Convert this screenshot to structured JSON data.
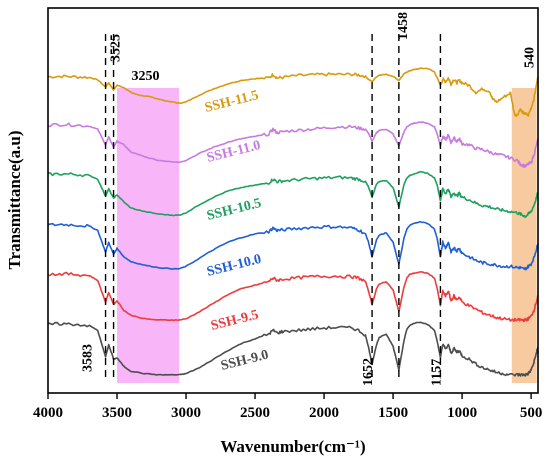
{
  "chart_data": {
    "type": "line",
    "xlabel": "Wavenumber(cm⁻¹)",
    "ylabel": "Transmittance(a.u)",
    "xlim": [
      4000,
      450
    ],
    "x_reversed": true,
    "x_ticks": [
      4000,
      3500,
      3000,
      2500,
      2000,
      1500,
      1000,
      500
    ],
    "y_ticks_shown": false,
    "grid": false,
    "legend": "inline labels beside each curve",
    "series": [
      {
        "name": "SSH-11.5",
        "color": "#d99a10",
        "offset": 5,
        "x": [
          4000,
          3900,
          3800,
          3700,
          3640,
          3583,
          3560,
          3525,
          3500,
          3450,
          3400,
          3350,
          3300,
          3250,
          3200,
          3150,
          3100,
          3050,
          3000,
          2900,
          2800,
          2700,
          2600,
          2500,
          2400,
          2370,
          2340,
          2300,
          2200,
          2100,
          2000,
          1900,
          1800,
          1750,
          1700,
          1680,
          1652,
          1620,
          1600,
          1550,
          1500,
          1458,
          1420,
          1400,
          1380,
          1350,
          1300,
          1250,
          1200,
          1180,
          1157,
          1140,
          1120,
          1100,
          1080,
          1060,
          1040,
          1020,
          1000,
          950,
          900,
          850,
          800,
          780,
          750,
          700,
          650,
          620,
          600,
          580,
          560,
          540,
          520,
          500,
          480,
          460,
          450
        ],
        "y": [
          0.92,
          0.93,
          0.92,
          0.91,
          0.87,
          0.75,
          0.82,
          0.7,
          0.78,
          0.74,
          0.66,
          0.62,
          0.6,
          0.58,
          0.55,
          0.52,
          0.5,
          0.48,
          0.5,
          0.62,
          0.72,
          0.8,
          0.86,
          0.89,
          0.9,
          0.96,
          0.9,
          0.91,
          0.94,
          0.95,
          0.96,
          0.96,
          0.96,
          0.95,
          0.93,
          0.88,
          0.84,
          0.92,
          0.95,
          0.96,
          0.93,
          0.86,
          0.97,
          1.0,
          1.02,
          1.04,
          1.06,
          1.06,
          1.0,
          0.9,
          0.78,
          0.88,
          0.84,
          0.9,
          0.8,
          0.88,
          0.82,
          0.86,
          0.82,
          0.78,
          0.66,
          0.72,
          0.68,
          0.55,
          0.5,
          0.58,
          0.65,
          0.3,
          0.28,
          0.38,
          0.32,
          0.3,
          0.28,
          0.4,
          0.55,
          0.8,
          0.92
        ]
      },
      {
        "name": "SSH-11.0",
        "color": "#c77ae0",
        "offset": 4,
        "x": [
          4000,
          3900,
          3800,
          3700,
          3640,
          3583,
          3560,
          3525,
          3500,
          3450,
          3400,
          3300,
          3200,
          3100,
          3050,
          3000,
          2900,
          2800,
          2700,
          2600,
          2500,
          2400,
          2370,
          2340,
          2300,
          2200,
          2100,
          2000,
          1900,
          1800,
          1750,
          1700,
          1680,
          1652,
          1620,
          1600,
          1550,
          1500,
          1458,
          1420,
          1400,
          1380,
          1350,
          1300,
          1250,
          1200,
          1180,
          1157,
          1140,
          1120,
          1100,
          1080,
          1060,
          1040,
          1020,
          1000,
          950,
          900,
          850,
          800,
          750,
          700,
          650,
          600,
          580,
          560,
          540,
          520,
          500,
          480,
          460,
          450
        ],
        "y": [
          0.95,
          0.96,
          0.95,
          0.93,
          0.88,
          0.62,
          0.75,
          0.58,
          0.68,
          0.62,
          0.5,
          0.42,
          0.36,
          0.34,
          0.33,
          0.36,
          0.48,
          0.58,
          0.66,
          0.72,
          0.76,
          0.8,
          0.88,
          0.82,
          0.84,
          0.86,
          0.88,
          0.9,
          0.92,
          0.92,
          0.9,
          0.88,
          0.82,
          0.68,
          0.82,
          0.86,
          0.88,
          0.8,
          0.6,
          0.84,
          0.92,
          0.95,
          0.98,
          1.0,
          0.98,
          0.92,
          0.8,
          0.6,
          0.76,
          0.7,
          0.78,
          0.66,
          0.74,
          0.68,
          0.72,
          0.64,
          0.62,
          0.56,
          0.54,
          0.5,
          0.46,
          0.44,
          0.4,
          0.36,
          0.3,
          0.28,
          0.26,
          0.3,
          0.32,
          0.45,
          0.62,
          0.72
        ]
      },
      {
        "name": "SSH-10.5",
        "color": "#1ea060",
        "offset": 3,
        "x": [
          4000,
          3900,
          3800,
          3700,
          3640,
          3583,
          3560,
          3525,
          3500,
          3450,
          3400,
          3300,
          3200,
          3100,
          3050,
          3000,
          2900,
          2800,
          2700,
          2600,
          2500,
          2400,
          2370,
          2340,
          2300,
          2200,
          2100,
          2000,
          1900,
          1800,
          1750,
          1700,
          1680,
          1652,
          1620,
          1600,
          1550,
          1500,
          1458,
          1420,
          1400,
          1380,
          1350,
          1300,
          1250,
          1200,
          1180,
          1157,
          1140,
          1120,
          1100,
          1080,
          1060,
          1040,
          1020,
          1000,
          950,
          900,
          850,
          800,
          750,
          700,
          650,
          600,
          580,
          560,
          540,
          520,
          500,
          480,
          460,
          450
        ],
        "y": [
          0.96,
          0.97,
          0.96,
          0.94,
          0.88,
          0.6,
          0.72,
          0.56,
          0.62,
          0.5,
          0.4,
          0.34,
          0.3,
          0.28,
          0.28,
          0.32,
          0.46,
          0.58,
          0.68,
          0.74,
          0.78,
          0.82,
          0.88,
          0.84,
          0.85,
          0.87,
          0.89,
          0.9,
          0.91,
          0.9,
          0.88,
          0.84,
          0.76,
          0.58,
          0.8,
          0.84,
          0.86,
          0.74,
          0.42,
          0.8,
          0.9,
          0.94,
          0.97,
          1.0,
          0.98,
          0.9,
          0.78,
          0.52,
          0.72,
          0.64,
          0.72,
          0.58,
          0.66,
          0.6,
          0.64,
          0.58,
          0.54,
          0.48,
          0.44,
          0.42,
          0.38,
          0.36,
          0.34,
          0.32,
          0.3,
          0.28,
          0.26,
          0.3,
          0.34,
          0.44,
          0.58,
          0.66
        ]
      },
      {
        "name": "SSH-10.0",
        "color": "#1f5fd6",
        "offset": 2,
        "x": [
          4000,
          3900,
          3800,
          3700,
          3640,
          3583,
          3560,
          3525,
          3500,
          3450,
          3400,
          3300,
          3200,
          3100,
          3050,
          3000,
          2900,
          2800,
          2700,
          2600,
          2500,
          2400,
          2370,
          2340,
          2300,
          2200,
          2100,
          2000,
          1900,
          1800,
          1750,
          1700,
          1680,
          1652,
          1620,
          1600,
          1550,
          1500,
          1458,
          1420,
          1400,
          1380,
          1350,
          1300,
          1250,
          1200,
          1180,
          1157,
          1140,
          1120,
          1100,
          1080,
          1060,
          1040,
          1020,
          1000,
          950,
          900,
          850,
          800,
          750,
          700,
          650,
          600,
          580,
          560,
          540,
          520,
          500,
          480,
          460,
          450
        ],
        "y": [
          0.95,
          0.96,
          0.95,
          0.93,
          0.86,
          0.5,
          0.66,
          0.46,
          0.56,
          0.42,
          0.34,
          0.28,
          0.24,
          0.22,
          0.22,
          0.26,
          0.4,
          0.54,
          0.66,
          0.74,
          0.8,
          0.84,
          0.9,
          0.86,
          0.87,
          0.89,
          0.91,
          0.92,
          0.92,
          0.9,
          0.87,
          0.8,
          0.68,
          0.42,
          0.7,
          0.78,
          0.82,
          0.66,
          0.3,
          0.74,
          0.88,
          0.94,
          0.98,
          1.0,
          0.98,
          0.88,
          0.72,
          0.42,
          0.66,
          0.56,
          0.66,
          0.48,
          0.58,
          0.52,
          0.56,
          0.48,
          0.42,
          0.36,
          0.32,
          0.3,
          0.28,
          0.26,
          0.26,
          0.24,
          0.24,
          0.22,
          0.22,
          0.26,
          0.3,
          0.4,
          0.56,
          0.64
        ]
      },
      {
        "name": "SSH-9.5",
        "color": "#ee3b3b",
        "offset": 1,
        "x": [
          4000,
          3900,
          3800,
          3700,
          3640,
          3583,
          3560,
          3525,
          3500,
          3450,
          3400,
          3300,
          3200,
          3100,
          3050,
          3000,
          2900,
          2800,
          2700,
          2600,
          2500,
          2400,
          2370,
          2340,
          2300,
          2200,
          2100,
          2000,
          1900,
          1800,
          1750,
          1700,
          1680,
          1652,
          1620,
          1600,
          1550,
          1500,
          1458,
          1420,
          1400,
          1380,
          1350,
          1300,
          1250,
          1200,
          1180,
          1157,
          1140,
          1120,
          1100,
          1080,
          1060,
          1040,
          1020,
          1000,
          950,
          900,
          850,
          800,
          750,
          700,
          650,
          600,
          580,
          560,
          540,
          520,
          500,
          480,
          460,
          450
        ],
        "y": [
          0.96,
          0.97,
          0.96,
          0.94,
          0.86,
          0.5,
          0.66,
          0.46,
          0.52,
          0.36,
          0.28,
          0.22,
          0.2,
          0.2,
          0.2,
          0.22,
          0.34,
          0.48,
          0.62,
          0.72,
          0.78,
          0.84,
          0.9,
          0.86,
          0.88,
          0.9,
          0.92,
          0.93,
          0.93,
          0.92,
          0.9,
          0.84,
          0.7,
          0.46,
          0.72,
          0.8,
          0.84,
          0.7,
          0.34,
          0.76,
          0.9,
          0.96,
          0.98,
          1.0,
          0.98,
          0.9,
          0.72,
          0.44,
          0.68,
          0.6,
          0.68,
          0.52,
          0.6,
          0.54,
          0.58,
          0.5,
          0.44,
          0.38,
          0.32,
          0.28,
          0.24,
          0.22,
          0.2,
          0.2,
          0.2,
          0.2,
          0.2,
          0.22,
          0.26,
          0.36,
          0.52,
          0.6
        ]
      },
      {
        "name": "SSH-9.0",
        "color": "#4d4d4d",
        "offset": 0,
        "x": [
          4000,
          3900,
          3800,
          3700,
          3640,
          3583,
          3560,
          3525,
          3500,
          3450,
          3400,
          3300,
          3200,
          3100,
          3050,
          3000,
          2900,
          2800,
          2700,
          2600,
          2500,
          2400,
          2370,
          2340,
          2300,
          2200,
          2100,
          2000,
          1900,
          1800,
          1750,
          1700,
          1680,
          1652,
          1620,
          1600,
          1550,
          1500,
          1458,
          1420,
          1400,
          1380,
          1350,
          1300,
          1250,
          1200,
          1180,
          1157,
          1140,
          1120,
          1100,
          1080,
          1060,
          1040,
          1020,
          1000,
          950,
          900,
          850,
          800,
          750,
          700,
          650,
          600,
          580,
          560,
          540,
          520,
          500,
          480,
          460,
          450
        ],
        "y": [
          0.96,
          0.97,
          0.96,
          0.94,
          0.86,
          0.42,
          0.62,
          0.38,
          0.4,
          0.26,
          0.18,
          0.14,
          0.12,
          0.12,
          0.12,
          0.14,
          0.24,
          0.38,
          0.52,
          0.64,
          0.72,
          0.8,
          0.86,
          0.82,
          0.84,
          0.86,
          0.88,
          0.9,
          0.91,
          0.9,
          0.86,
          0.78,
          0.6,
          0.3,
          0.62,
          0.74,
          0.8,
          0.6,
          0.2,
          0.7,
          0.88,
          0.94,
          0.98,
          1.0,
          0.96,
          0.86,
          0.68,
          0.4,
          0.64,
          0.54,
          0.62,
          0.48,
          0.56,
          0.5,
          0.52,
          0.44,
          0.38,
          0.3,
          0.24,
          0.2,
          0.16,
          0.14,
          0.12,
          0.12,
          0.12,
          0.12,
          0.12,
          0.14,
          0.2,
          0.32,
          0.5,
          0.58
        ]
      }
    ],
    "peak_lines": [
      3583,
      3525,
      1652,
      1458,
      1157
    ],
    "annotations": [
      {
        "text": "3525",
        "x": 3525
      },
      {
        "text": "3250",
        "x": 3250
      },
      {
        "text": "1458",
        "x": 1458
      },
      {
        "text": "540",
        "x": 540
      },
      {
        "text": "3583",
        "x": 3583
      },
      {
        "text": "1652",
        "x": 1652
      },
      {
        "text": "1157",
        "x": 1157
      }
    ],
    "shaded_regions": [
      {
        "x": [
          3500,
          3050
        ],
        "color": "#f27af2"
      },
      {
        "x": [
          640,
          460
        ],
        "color": "#f0a050"
      }
    ]
  }
}
